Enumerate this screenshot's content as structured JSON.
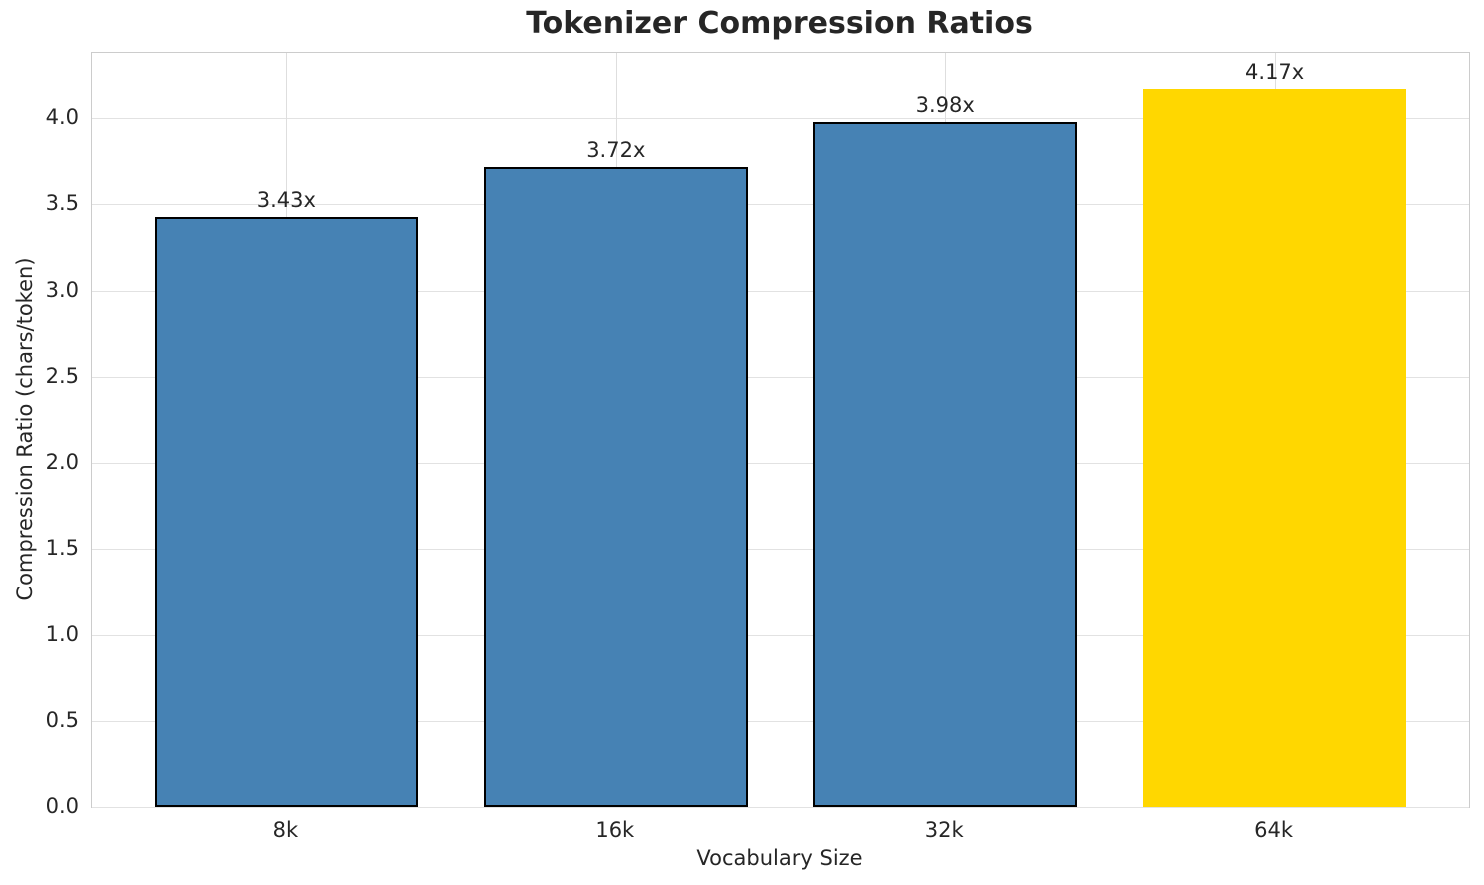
{
  "chart_data": {
    "type": "bar",
    "title": "Tokenizer Compression Ratios",
    "xlabel": "Vocabulary Size",
    "ylabel": "Compression Ratio (chars/token)",
    "categories": [
      "8k",
      "16k",
      "32k",
      "64k"
    ],
    "values": [
      3.43,
      3.72,
      3.98,
      4.17
    ],
    "bar_labels": [
      "3.43x",
      "3.72x",
      "3.98x",
      "4.17x"
    ],
    "bar_colors": [
      "#4682B4",
      "#4682B4",
      "#4682B4",
      "#FFD700"
    ],
    "bar_edge_colors": [
      "#000000",
      "#000000",
      "#000000",
      "none"
    ],
    "highlight_index": 3,
    "bar_width": 0.8,
    "xlim": [
      -0.59,
      3.59
    ],
    "ylim": [
      0,
      4.38
    ],
    "yticks": [
      0.0,
      0.5,
      1.0,
      1.5,
      2.0,
      2.5,
      3.0,
      3.5,
      4.0
    ],
    "ytick_labels": [
      "0.0",
      "0.5",
      "1.0",
      "1.5",
      "2.0",
      "2.5",
      "3.0",
      "3.5",
      "4.0"
    ],
    "grid": true,
    "legend": "none"
  },
  "colors": {
    "background": "#ffffff",
    "text": "#262626",
    "grid_h": "#e2e2e2",
    "grid_v": "#dedede",
    "spine": "#cccccc",
    "bar_blue": "#4682B4",
    "bar_gold": "#FFD700",
    "bar_edge": "#000000"
  }
}
